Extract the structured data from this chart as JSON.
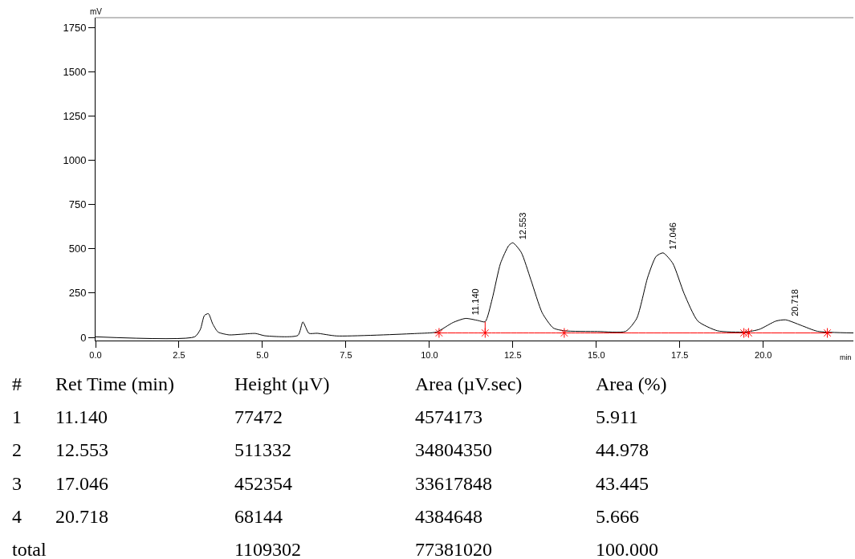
{
  "chart_data": {
    "type": "line",
    "xlabel": "min",
    "ylabel": "mV",
    "xlim": [
      0,
      22.7
    ],
    "ylim": [
      -18,
      1805
    ],
    "xticks": [
      {
        "value": 0,
        "label": "0.0"
      },
      {
        "value": 2.5,
        "label": "2.5"
      },
      {
        "value": 5,
        "label": "5.0"
      },
      {
        "value": 7.5,
        "label": "7.5"
      },
      {
        "value": 10,
        "label": "10.0"
      },
      {
        "value": 12.5,
        "label": "12.5"
      },
      {
        "value": 15,
        "label": "15.0"
      },
      {
        "value": 17.5,
        "label": "17.5"
      },
      {
        "value": 20,
        "label": "20.0"
      }
    ],
    "yticks": [
      0,
      250,
      500,
      750,
      1000,
      1250,
      1500,
      1750
    ],
    "series": [
      {
        "color": "#000000",
        "marker": "none",
        "x": [
          0,
          2.97,
          3.14,
          3.26,
          3.38,
          3.51,
          3.67,
          4.0,
          4.33,
          4.79,
          5.07,
          6.06,
          6.21,
          6.39,
          6.64,
          7.22,
          9.63,
          10.21,
          10.71,
          11.08,
          11.46,
          11.67,
          11.88,
          12.13,
          12.38,
          12.5,
          12.75,
          13.04,
          13.38,
          13.71,
          14.04,
          15.04,
          15.88,
          16.21,
          16.54,
          16.79,
          17.0,
          17.29,
          17.63,
          18.04,
          18.63,
          19.46,
          19.88,
          20.38,
          20.67,
          21.13,
          21.63,
          22.7
        ],
        "values": [
          3,
          3,
          45,
          123,
          134,
          76,
          30,
          14,
          17,
          22,
          9,
          11,
          87,
          23,
          23,
          8,
          22,
          30,
          84,
          107,
          95,
          88,
          216,
          418,
          519,
          534,
          480,
          325,
          138,
          53,
          37,
          33,
          34,
          107,
          340,
          457,
          477,
          418,
          247,
          92,
          37,
          30,
          45,
          92,
          99,
          68,
          34,
          25
        ]
      },
      {
        "color": "#ff0000",
        "marker": "cross",
        "x": [
          10.29,
          11.67,
          14.04,
          19.42,
          19.56,
          21.92
        ],
        "values": [
          25,
          25,
          25,
          25,
          25,
          25
        ]
      },
      {
        "color": "#ff0000",
        "marker": "none",
        "x": [
          11.67,
          11.67
        ],
        "values": [
          25,
          88
        ]
      }
    ],
    "annotations": [
      {
        "text": "11.140",
        "x": 11.14,
        "y": 107
      },
      {
        "text": "12.553",
        "x": 12.553,
        "y": 534
      },
      {
        "text": "17.046",
        "x": 17.046,
        "y": 477
      },
      {
        "text": "20.718",
        "x": 20.718,
        "y": 99
      },
      "#",
      "Ret Time (min)",
      "Height (µV)",
      "Area (µV.sec)",
      "Area (%)",
      "1",
      "11.140",
      "77472",
      "4574173",
      "5.911",
      "2",
      "12.553",
      "511332",
      "34804350",
      "44.978",
      "3",
      "17.046",
      "452354",
      "33617848",
      "43.445",
      "4",
      "20.718",
      "68144",
      "4384648",
      "5.666",
      "total",
      "1109302",
      "77381020",
      "100.000"
    ]
  }
}
